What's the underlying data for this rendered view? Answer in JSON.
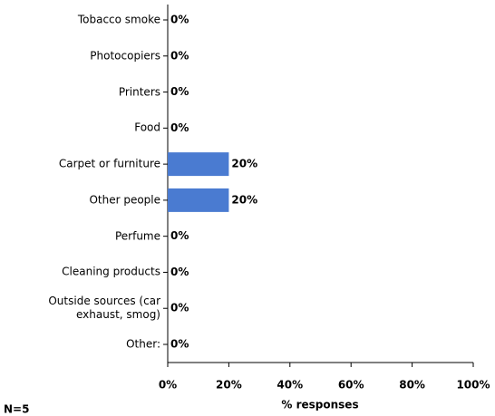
{
  "chart_data": {
    "type": "barh",
    "categories": [
      "Tobacco smoke",
      "Photocopiers",
      "Printers",
      "Food",
      "Carpet or furniture",
      "Other people",
      "Perfume",
      "Cleaning products",
      "Outside sources (car exhaust, smog)",
      "Other:"
    ],
    "values": [
      0,
      0,
      0,
      0,
      20,
      20,
      0,
      0,
      0,
      0
    ],
    "value_labels": [
      "0%",
      "0%",
      "0%",
      "0%",
      "20%",
      "20%",
      "0%",
      "0%",
      "0%",
      "0%"
    ],
    "color": "#4a7bd1",
    "xlim": [
      0,
      100
    ],
    "xticks": [
      {
        "value": 0,
        "label": "0%"
      },
      {
        "value": 20,
        "label": "20%"
      },
      {
        "value": 40,
        "label": "40%"
      },
      {
        "value": 60,
        "label": "60%"
      },
      {
        "value": 80,
        "label": "80%"
      },
      {
        "value": 100,
        "label": "100%"
      }
    ],
    "xlabel": "% responses",
    "note": "N=5"
  }
}
